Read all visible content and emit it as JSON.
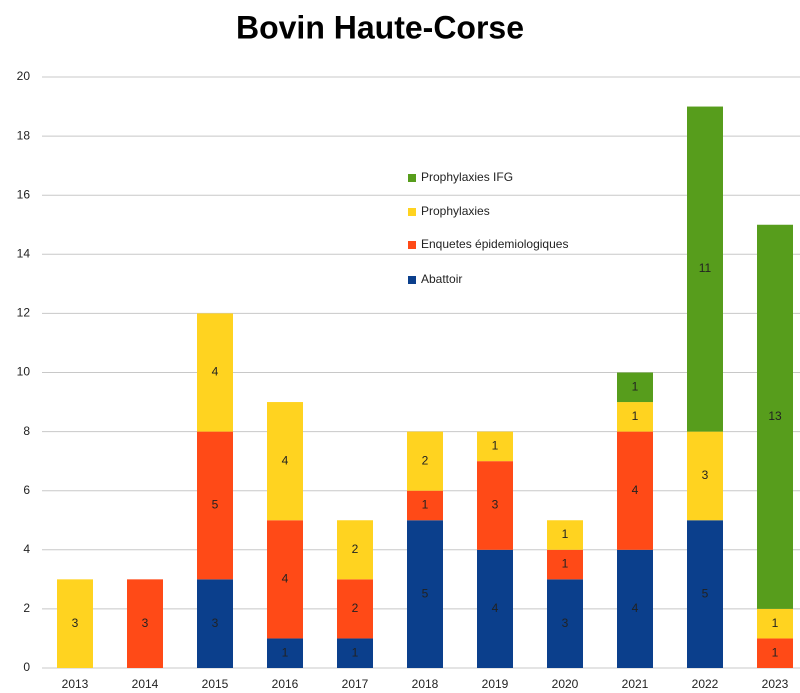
{
  "chart_data": {
    "type": "stacked_bar",
    "title": "Bovin Haute-Corse",
    "categories": [
      "2013",
      "2014",
      "2015",
      "2016",
      "2017",
      "2018",
      "2019",
      "2020",
      "2021",
      "2022",
      "2023"
    ],
    "series": [
      {
        "name": "Abattoir",
        "color": "#0b3f8c",
        "values": [
          null,
          null,
          3,
          1,
          1,
          5,
          4,
          3,
          4,
          5,
          null
        ]
      },
      {
        "name": "Enquetes épidemiologiques",
        "color": "#ff4a17",
        "values": [
          null,
          3,
          5,
          4,
          2,
          1,
          3,
          1,
          4,
          null,
          1
        ]
      },
      {
        "name": "Prophylaxies",
        "color": "#ffd320",
        "values": [
          3,
          null,
          4,
          4,
          2,
          2,
          1,
          1,
          1,
          3,
          1
        ]
      },
      {
        "name": "Prophylaxies IFG",
        "color": "#579d1c",
        "values": [
          null,
          null,
          null,
          null,
          null,
          null,
          null,
          null,
          1,
          11,
          13
        ]
      }
    ],
    "ylim": [
      0,
      20
    ],
    "yticks": [
      0,
      2,
      4,
      6,
      8,
      10,
      12,
      14,
      16,
      18,
      20
    ],
    "grid": true,
    "legend": "inside-center"
  }
}
